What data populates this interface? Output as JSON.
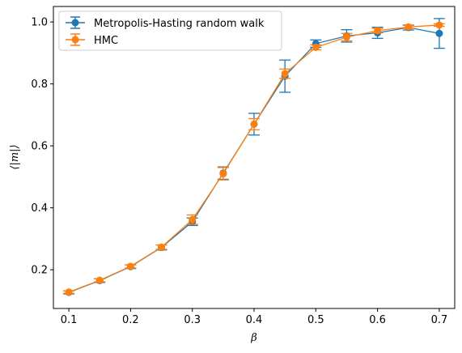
{
  "chart_data": {
    "type": "line",
    "title": "",
    "xlabel": "β",
    "ylabel": "⟨|m|⟩",
    "xlim": [
      0.075,
      0.725
    ],
    "ylim": [
      0.075,
      1.05
    ],
    "xticks": [
      "0.1",
      "0.2",
      "0.3",
      "0.4",
      "0.5",
      "0.6",
      "0.7"
    ],
    "xtick_values": [
      0.1,
      0.2,
      0.3,
      0.4,
      0.5,
      0.6,
      0.7
    ],
    "yticks": [
      "0.2",
      "0.4",
      "0.6",
      "0.8",
      "1.0"
    ],
    "ytick_values": [
      0.2,
      0.4,
      0.6,
      0.8,
      1.0
    ],
    "grid": false,
    "legend_position": "top-left",
    "x": [
      0.1,
      0.15,
      0.2,
      0.25,
      0.3,
      0.35,
      0.4,
      0.45,
      0.5,
      0.55,
      0.6,
      0.65,
      0.7
    ],
    "series": [
      {
        "name": "Metropolis-Hasting random walk",
        "color": "#1f77b4",
        "values": [
          0.127,
          0.165,
          0.21,
          0.272,
          0.355,
          0.512,
          0.67,
          0.825,
          0.93,
          0.955,
          0.965,
          0.982,
          0.963
        ],
        "errors": [
          0.005,
          0.006,
          0.006,
          0.008,
          0.012,
          0.02,
          0.035,
          0.052,
          0.012,
          0.02,
          0.018,
          0.008,
          0.048
        ]
      },
      {
        "name": "HMC",
        "color": "#ff7f0e",
        "values": [
          0.128,
          0.166,
          0.211,
          0.273,
          0.362,
          0.51,
          0.67,
          0.833,
          0.918,
          0.951,
          0.972,
          0.984,
          0.99
        ],
        "errors": [
          0.004,
          0.005,
          0.005,
          0.007,
          0.015,
          0.02,
          0.018,
          0.015,
          0.008,
          0.012,
          0.007,
          0.005,
          0.004
        ]
      }
    ]
  }
}
